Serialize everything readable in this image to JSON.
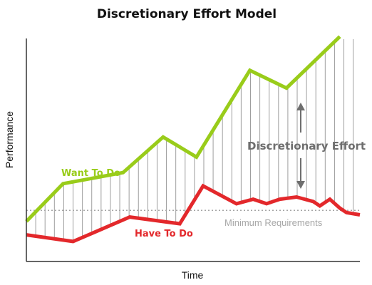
{
  "chart_data": {
    "type": "line",
    "title": "Discretionary Effort Model",
    "xlabel": "Time",
    "ylabel": "Performance",
    "xlim": [
      0,
      100
    ],
    "ylim": [
      0,
      100
    ],
    "grid": false,
    "series": [
      {
        "name": "Want To Do",
        "color": "#99cc1a",
        "x": [
          0,
          11,
          29,
          41,
          51,
          67,
          78,
          94
        ],
        "y": [
          18,
          35,
          40,
          56,
          47,
          86,
          78,
          101
        ]
      },
      {
        "name": "Have To Do",
        "color": "#e3282b",
        "x": [
          0,
          14,
          31,
          46,
          53,
          63,
          68,
          72,
          76,
          81,
          86,
          88,
          91,
          94,
          96,
          100
        ],
        "y": [
          12,
          9,
          20,
          17,
          34,
          26,
          28,
          26,
          28,
          29,
          27,
          25,
          28,
          24,
          22,
          21
        ]
      }
    ],
    "reference_line": {
      "label": "Minimum Requirements",
      "y": 23
    },
    "annotation": {
      "label": "Discretionary Effort"
    }
  }
}
